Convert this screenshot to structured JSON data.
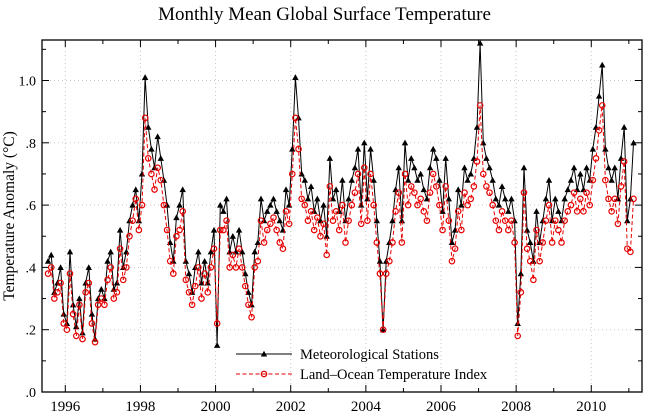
{
  "chart_data": {
    "type": "line",
    "title": "Monthly Mean Global Surface Temperature",
    "xlabel": "",
    "ylabel": "Temperature Anomaly (°C)",
    "xlim": [
      1995.38,
      2011.35
    ],
    "ylim": [
      0,
      1.13
    ],
    "grid": true,
    "legend_position": "bottom-center",
    "x_start": 1995.5417,
    "x_step": 0.0833333,
    "xticks_major": [
      1996,
      1998,
      2000,
      2002,
      2004,
      2006,
      2008,
      2010
    ],
    "xtick_labels": [
      "1996",
      "1998",
      "2000",
      "2002",
      "2004",
      "2006",
      "2008",
      "2010"
    ],
    "xticks_minor": [
      1997,
      1999,
      2001,
      2003,
      2005,
      2007,
      2009,
      2011
    ],
    "yticks_major": [
      0,
      0.2,
      0.4,
      0.6,
      0.8,
      1.0
    ],
    "ytick_labels": [
      ".0",
      ".2",
      ".4",
      ".6",
      ".8",
      "1.0"
    ],
    "yticks_minor": [
      0.1,
      0.3,
      0.5,
      0.7,
      0.9,
      1.1
    ],
    "colors": {
      "grid": "#c9c9c9",
      "frame": "#000000"
    },
    "series": [
      {
        "name": "Meteorological Stations",
        "color": "#000000",
        "marker": "triangle",
        "dash": "",
        "values": [
          0.42,
          0.44,
          0.32,
          0.35,
          0.4,
          0.25,
          0.22,
          0.45,
          0.28,
          0.21,
          0.3,
          0.19,
          0.35,
          0.4,
          0.25,
          0.17,
          0.3,
          0.33,
          0.3,
          0.42,
          0.45,
          0.33,
          0.35,
          0.52,
          0.4,
          0.45,
          0.55,
          0.6,
          0.65,
          0.55,
          0.7,
          1.01,
          0.85,
          0.78,
          0.72,
          0.82,
          0.75,
          0.68,
          0.6,
          0.48,
          0.42,
          0.56,
          0.6,
          0.65,
          0.42,
          0.38,
          0.32,
          0.4,
          0.45,
          0.35,
          0.42,
          0.35,
          0.45,
          0.52,
          0.15,
          0.6,
          0.58,
          0.62,
          0.45,
          0.5,
          0.45,
          0.52,
          0.45,
          0.38,
          0.32,
          0.28,
          0.45,
          0.48,
          0.62,
          0.55,
          0.58,
          0.6,
          0.62,
          0.58,
          0.55,
          0.52,
          0.65,
          0.6,
          0.78,
          1.01,
          0.88,
          0.7,
          0.68,
          0.62,
          0.66,
          0.58,
          0.62,
          0.55,
          0.6,
          0.5,
          0.75,
          0.62,
          0.65,
          0.58,
          0.68,
          0.55,
          0.62,
          0.68,
          0.72,
          0.78,
          0.6,
          0.8,
          0.62,
          0.78,
          0.68,
          0.55,
          0.42,
          0.2,
          0.42,
          0.48,
          0.55,
          0.65,
          0.72,
          0.55,
          0.8,
          0.68,
          0.75,
          0.72,
          0.68,
          0.7,
          0.65,
          0.62,
          0.72,
          0.78,
          0.75,
          0.68,
          0.58,
          0.75,
          0.62,
          0.48,
          0.52,
          0.65,
          0.6,
          0.72,
          0.68,
          0.7,
          0.75,
          0.85,
          1.12,
          0.8,
          0.75,
          0.72,
          0.68,
          0.62,
          0.6,
          0.66,
          0.62,
          0.58,
          0.62,
          0.55,
          0.22,
          0.38,
          0.72,
          0.52,
          0.48,
          0.42,
          0.58,
          0.48,
          0.55,
          0.62,
          0.68,
          0.55,
          0.62,
          0.58,
          0.55,
          0.62,
          0.65,
          0.68,
          0.72,
          0.65,
          0.7,
          0.65,
          0.72,
          0.68,
          0.78,
          0.85,
          0.95,
          1.05,
          0.78,
          0.72,
          0.68,
          0.72,
          0.62,
          0.75,
          0.85,
          0.55,
          0.62,
          0.8
        ]
      },
      {
        "name": "Land–Ocean Temperature Index",
        "color": "#e60000",
        "marker": "circle",
        "dash": "4 2.5",
        "values": [
          0.38,
          0.4,
          0.3,
          0.32,
          0.35,
          0.22,
          0.2,
          0.38,
          0.25,
          0.18,
          0.28,
          0.17,
          0.32,
          0.35,
          0.22,
          0.16,
          0.28,
          0.3,
          0.28,
          0.36,
          0.4,
          0.3,
          0.32,
          0.46,
          0.36,
          0.4,
          0.5,
          0.55,
          0.62,
          0.52,
          0.6,
          0.88,
          0.75,
          0.7,
          0.65,
          0.72,
          0.68,
          0.6,
          0.52,
          0.42,
          0.38,
          0.5,
          0.52,
          0.58,
          0.36,
          0.32,
          0.28,
          0.34,
          0.4,
          0.3,
          0.38,
          0.32,
          0.4,
          0.46,
          0.22,
          0.52,
          0.52,
          0.55,
          0.4,
          0.44,
          0.4,
          0.46,
          0.4,
          0.34,
          0.28,
          0.24,
          0.4,
          0.42,
          0.55,
          0.48,
          0.52,
          0.54,
          0.56,
          0.52,
          0.48,
          0.46,
          0.58,
          0.54,
          0.7,
          0.88,
          0.78,
          0.62,
          0.6,
          0.55,
          0.58,
          0.52,
          0.56,
          0.5,
          0.54,
          0.44,
          0.66,
          0.55,
          0.58,
          0.52,
          0.6,
          0.48,
          0.55,
          0.6,
          0.64,
          0.7,
          0.54,
          0.72,
          0.55,
          0.7,
          0.6,
          0.48,
          0.38,
          0.2,
          0.38,
          0.42,
          0.48,
          0.58,
          0.64,
          0.48,
          0.7,
          0.6,
          0.66,
          0.64,
          0.6,
          0.62,
          0.58,
          0.55,
          0.64,
          0.7,
          0.66,
          0.6,
          0.52,
          0.66,
          0.55,
          0.42,
          0.46,
          0.58,
          0.52,
          0.64,
          0.6,
          0.62,
          0.66,
          0.74,
          0.92,
          0.7,
          0.66,
          0.64,
          0.6,
          0.55,
          0.52,
          0.58,
          0.55,
          0.52,
          0.55,
          0.48,
          0.18,
          0.32,
          0.64,
          0.46,
          0.42,
          0.36,
          0.52,
          0.42,
          0.48,
          0.55,
          0.6,
          0.48,
          0.55,
          0.52,
          0.48,
          0.55,
          0.58,
          0.6,
          0.64,
          0.58,
          0.62,
          0.58,
          0.64,
          0.6,
          0.68,
          0.75,
          0.84,
          0.92,
          0.68,
          0.62,
          0.58,
          0.62,
          0.54,
          0.66,
          0.74,
          0.46,
          0.45,
          0.62
        ]
      }
    ]
  }
}
